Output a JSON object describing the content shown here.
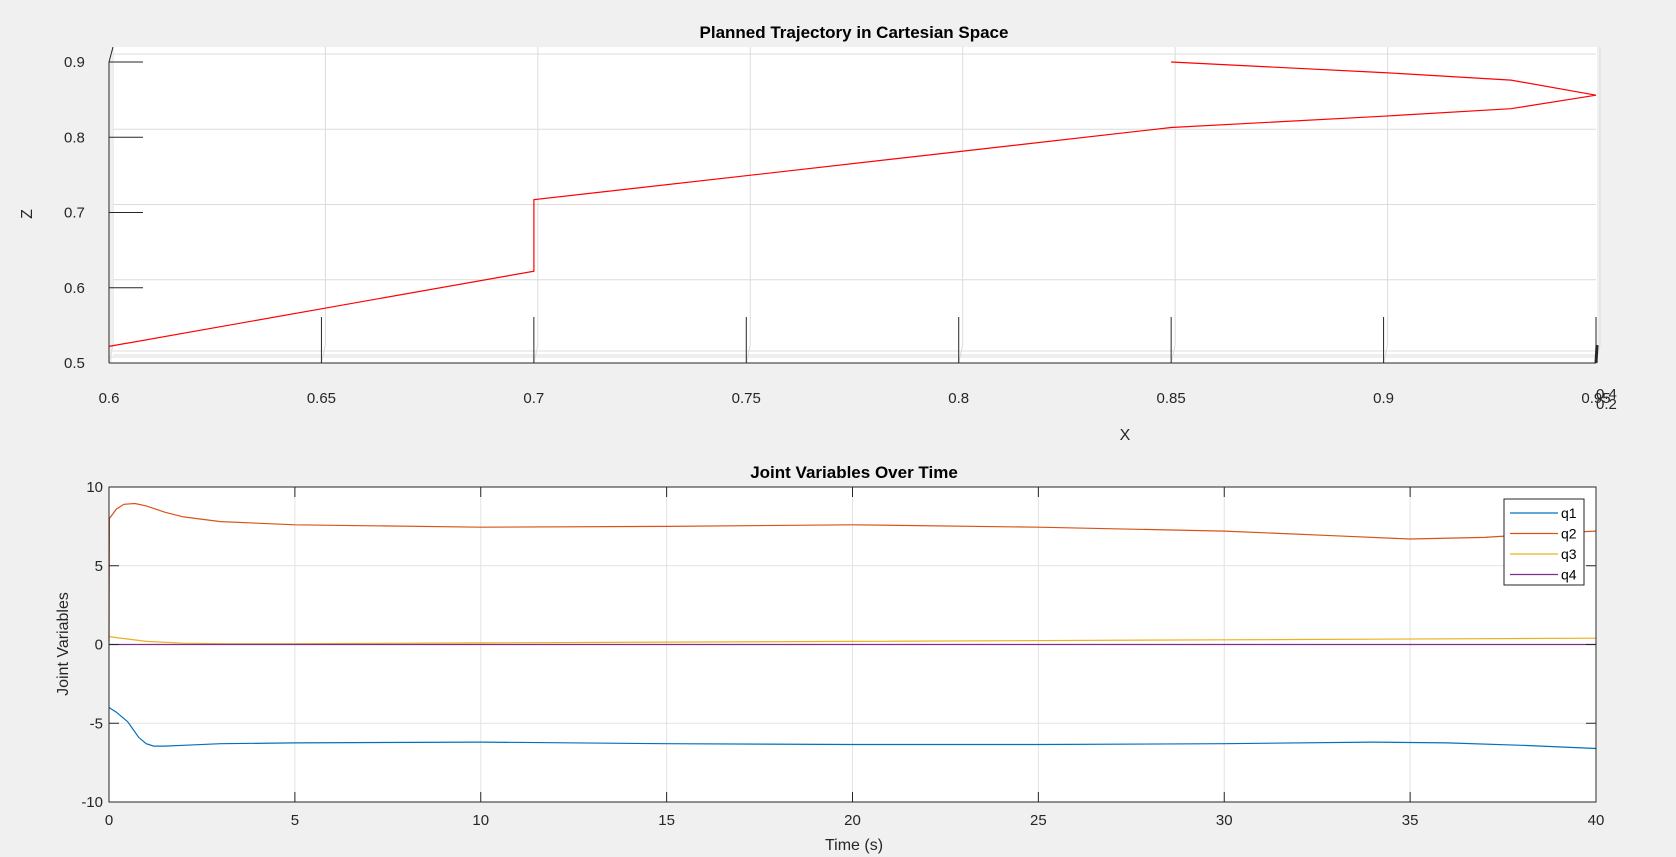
{
  "chart_data": [
    {
      "type": "line",
      "title": "Planned Trajectory in Cartesian Space",
      "xlabel": "X",
      "ylabel": "Z",
      "xlim": [
        0.6,
        0.95
      ],
      "ylim": [
        0.5,
        0.92
      ],
      "xticks": [
        "0.6",
        "0.65",
        "0.7",
        "0.75",
        "0.8",
        "0.85",
        "0.9",
        "0.95"
      ],
      "yticks": [
        "0.5",
        "0.6",
        "0.7",
        "0.8",
        "0.9"
      ],
      "depth_ticks": [
        "0.4",
        "0.2"
      ],
      "grid": true,
      "series": [
        {
          "color": "#ff0000",
          "x": [
            0.6,
            0.65,
            0.7,
            0.7,
            0.75,
            0.8,
            0.85,
            0.9,
            0.93,
            0.95,
            0.93,
            0.9,
            0.85
          ],
          "y": [
            0.522,
            0.572,
            0.622,
            0.717,
            0.749,
            0.781,
            0.813,
            0.828,
            0.838,
            0.856,
            0.876,
            0.886,
            0.9
          ]
        }
      ]
    },
    {
      "type": "line",
      "title": "Joint Variables Over Time",
      "xlabel": "Time (s)",
      "ylabel": "Joint Variables",
      "xlim": [
        0,
        40
      ],
      "ylim": [
        -10,
        10
      ],
      "xticks": [
        "0",
        "5",
        "10",
        "15",
        "20",
        "25",
        "30",
        "35",
        "40"
      ],
      "yticks": [
        "-10",
        "-5",
        "0",
        "5",
        "10"
      ],
      "grid": true,
      "legend": "top-right",
      "series": [
        {
          "name": "q1",
          "color": "#0072bd",
          "x": [
            0,
            0.2,
            0.5,
            0.8,
            1.0,
            1.2,
            1.5,
            2,
            3,
            5,
            10,
            15,
            20,
            25,
            30,
            34,
            36,
            38,
            40
          ],
          "y": [
            -4.0,
            -4.3,
            -4.9,
            -5.9,
            -6.3,
            -6.45,
            -6.45,
            -6.4,
            -6.3,
            -6.25,
            -6.2,
            -6.3,
            -6.35,
            -6.35,
            -6.3,
            -6.2,
            -6.25,
            -6.4,
            -6.6
          ]
        },
        {
          "name": "q2",
          "color": "#d95319",
          "x": [
            0,
            0.01,
            0.2,
            0.4,
            0.7,
            1.0,
            1.5,
            2,
            3,
            5,
            10,
            15,
            20,
            25,
            30,
            33,
            35,
            37,
            39,
            40
          ],
          "y": [
            0.2,
            8.0,
            8.6,
            8.9,
            8.95,
            8.8,
            8.4,
            8.1,
            7.8,
            7.6,
            7.45,
            7.5,
            7.6,
            7.45,
            7.2,
            6.9,
            6.7,
            6.8,
            7.1,
            7.2
          ]
        },
        {
          "name": "q3",
          "color": "#edb120",
          "x": [
            0,
            0.5,
            1,
            2,
            3,
            5,
            10,
            20,
            30,
            40
          ],
          "y": [
            0.5,
            0.35,
            0.2,
            0.08,
            0.05,
            0.05,
            0.1,
            0.2,
            0.3,
            0.4
          ]
        },
        {
          "name": "q4",
          "color": "#7e2f8e",
          "x": [
            0,
            40
          ],
          "y": [
            0,
            0
          ]
        }
      ]
    }
  ]
}
